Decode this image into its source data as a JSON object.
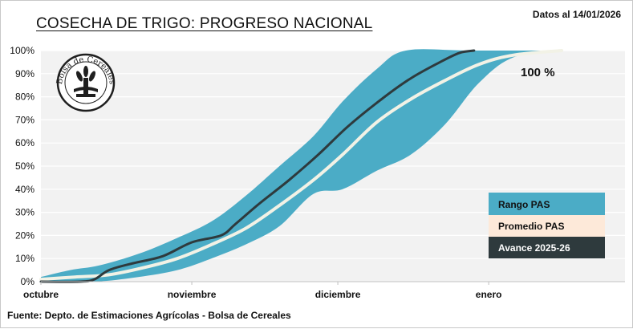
{
  "header": {
    "title": "COSECHA DE TRIGO: PROGRESO NACIONAL",
    "date_note": "Datos al 14/01/2026"
  },
  "footer": {
    "source": "Fuente: Depto. de Estimaciones Agrícolas - Bolsa de Cereales"
  },
  "logo": {
    "text": "Bolsa de Cereales"
  },
  "colors": {
    "range_fill": "#4bacc6",
    "average_line": "#f2f2e6",
    "average_legend": "#fde9d9",
    "current_line": "#2e3a3d",
    "plot_bg": "#f2f2f2",
    "grid": "#ffffff"
  },
  "chart_data": {
    "type": "area",
    "x_unit": "days from October 1",
    "x_axis": {
      "range": [
        0,
        120
      ],
      "month_labels": [
        {
          "label": "octubre",
          "x": 0
        },
        {
          "label": "noviembre",
          "x": 31
        },
        {
          "label": "diciembre",
          "x": 61
        },
        {
          "label": "enero",
          "x": 92
        }
      ]
    },
    "y_axis": {
      "range": [
        0,
        100
      ],
      "ticks": [
        "0%",
        "10%",
        "20%",
        "30%",
        "40%",
        "50%",
        "60%",
        "70%",
        "80%",
        "90%",
        "100%"
      ]
    },
    "grid": true,
    "legend_position": "bottom-right",
    "annotation": "100 %",
    "series": [
      {
        "name": "Rango PAS",
        "kind": "band",
        "upper": [
          [
            0,
            2
          ],
          [
            6,
            5
          ],
          [
            12,
            7
          ],
          [
            20,
            12
          ],
          [
            27,
            18
          ],
          [
            35,
            26
          ],
          [
            42,
            37
          ],
          [
            49,
            50
          ],
          [
            56,
            63
          ],
          [
            62,
            78
          ],
          [
            69,
            92
          ],
          [
            75,
            100
          ],
          [
            88,
            100
          ],
          [
            107,
            100
          ]
        ],
        "lower": [
          [
            0,
            0
          ],
          [
            11,
            0
          ],
          [
            20,
            2
          ],
          [
            28,
            5
          ],
          [
            35,
            10
          ],
          [
            42,
            16
          ],
          [
            49,
            24
          ],
          [
            56,
            38
          ],
          [
            62,
            40
          ],
          [
            69,
            48
          ],
          [
            76,
            55
          ],
          [
            83,
            68
          ],
          [
            90,
            86
          ],
          [
            97,
            97
          ],
          [
            107,
            100
          ]
        ]
      },
      {
        "name": "Promedio PAS",
        "kind": "line",
        "points": [
          [
            0,
            1
          ],
          [
            7,
            2
          ],
          [
            14,
            3
          ],
          [
            21,
            6
          ],
          [
            28,
            10
          ],
          [
            35,
            16
          ],
          [
            42,
            23
          ],
          [
            49,
            33
          ],
          [
            56,
            44
          ],
          [
            62,
            55
          ],
          [
            69,
            69
          ],
          [
            76,
            79
          ],
          [
            83,
            87
          ],
          [
            90,
            94
          ],
          [
            97,
            98
          ],
          [
            107,
            100
          ]
        ]
      },
      {
        "name": "Avance 2025-26",
        "kind": "line",
        "points": [
          [
            0,
            0
          ],
          [
            8,
            0
          ],
          [
            11,
            1
          ],
          [
            14,
            5
          ],
          [
            19,
            8
          ],
          [
            25,
            11
          ],
          [
            31,
            17
          ],
          [
            37,
            20
          ],
          [
            40,
            25
          ],
          [
            45,
            34
          ],
          [
            51,
            44
          ],
          [
            57,
            55
          ],
          [
            63,
            67
          ],
          [
            70,
            79
          ],
          [
            76,
            88
          ],
          [
            82,
            95
          ],
          [
            86,
            99
          ],
          [
            89,
            100
          ]
        ]
      }
    ]
  }
}
